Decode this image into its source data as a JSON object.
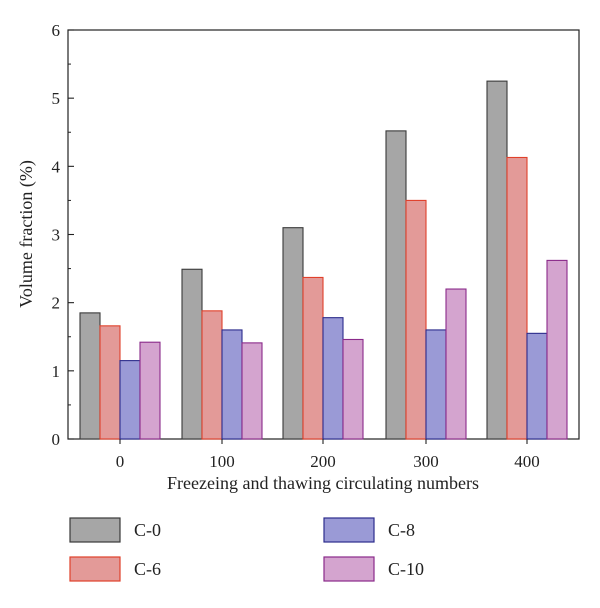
{
  "chart_data": {
    "type": "bar",
    "title": "",
    "xlabel": "Freezeing and thawing circulating numbers",
    "ylabel": "Volume fraction (%)",
    "categories": [
      "0",
      "100",
      "200",
      "300",
      "400"
    ],
    "ylim": [
      0,
      6
    ],
    "yticks": [
      "0",
      "1",
      "2",
      "3",
      "4",
      "5",
      "6"
    ],
    "grid": false,
    "legend_position": "bottom",
    "series": [
      {
        "name": "C-0",
        "fill": "#a6a6a6",
        "stroke": "#3a3a3a",
        "values": [
          1.85,
          2.49,
          3.1,
          4.52,
          5.25
        ]
      },
      {
        "name": "C-6",
        "fill": "#e39a98",
        "stroke": "#e0402a",
        "values": [
          1.66,
          1.88,
          2.37,
          3.5,
          4.13
        ]
      },
      {
        "name": "C-8",
        "fill": "#9a9ad6",
        "stroke": "#2c2c8c",
        "values": [
          1.15,
          1.6,
          1.78,
          1.6,
          1.55
        ]
      },
      {
        "name": "C-10",
        "fill": "#d4a4cf",
        "stroke": "#8a2a8a",
        "values": [
          1.42,
          1.41,
          1.46,
          2.2,
          2.62
        ]
      }
    ]
  }
}
